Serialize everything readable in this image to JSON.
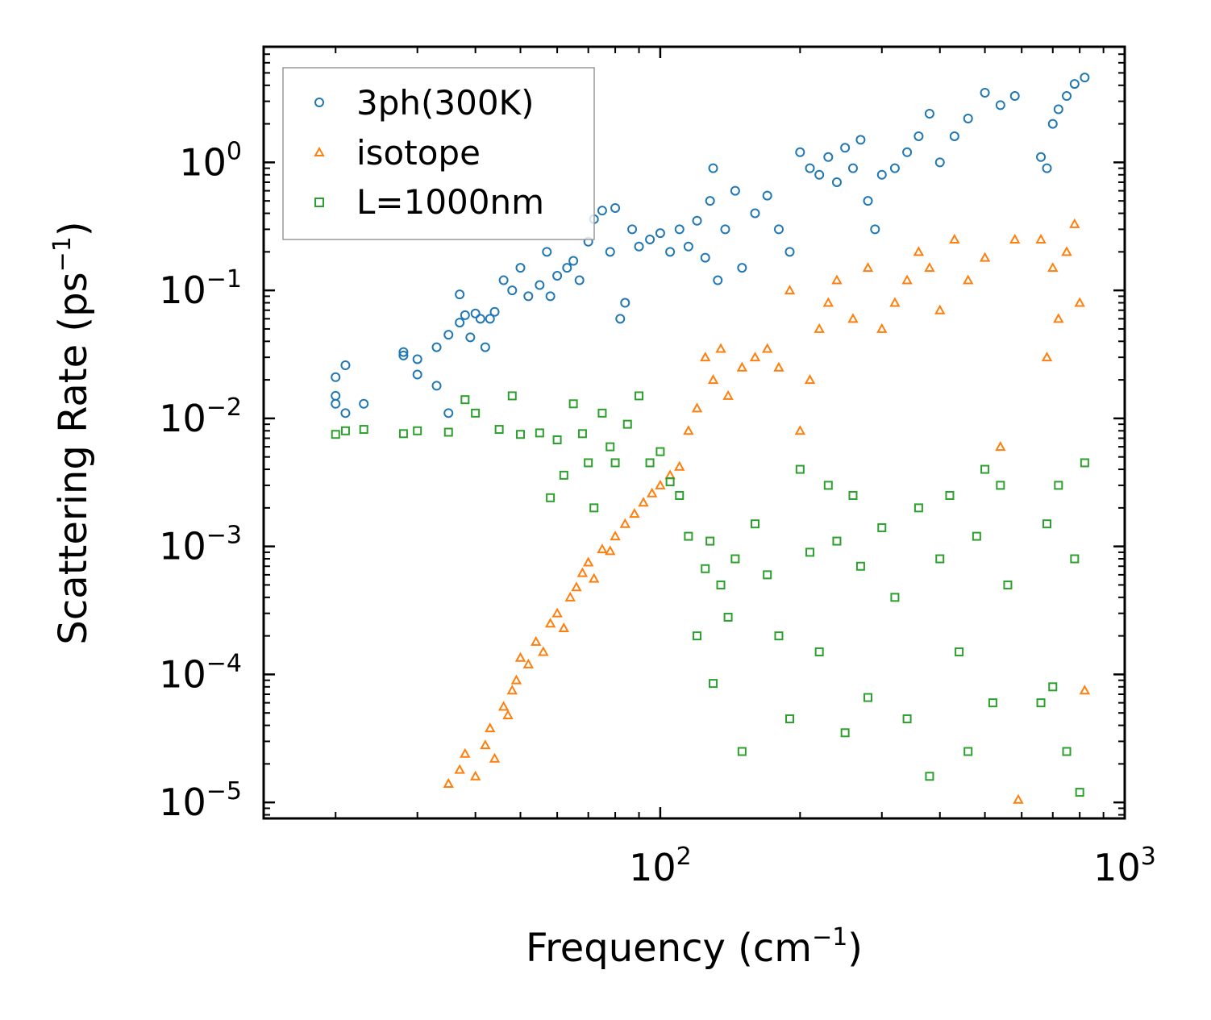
{
  "chart_data": {
    "type": "scatter",
    "title": "",
    "xlabel": "Frequency (cm",
    "xlabel_sup": "−1",
    "xlabel_suffix": ")",
    "ylabel": "Scattering Rate (ps",
    "ylabel_sup": "−1",
    "ylabel_suffix": ")",
    "xscale": "log",
    "yscale": "log",
    "xlim": [
      14,
      1000
    ],
    "ylim": [
      7.5e-06,
      8
    ],
    "x_ticks": [
      {
        "value": 100,
        "base": "10",
        "exp": "2"
      },
      {
        "value": 1000,
        "base": "10",
        "exp": "3"
      }
    ],
    "y_ticks": [
      {
        "value": 1e-05,
        "base": "10",
        "exp": "−5"
      },
      {
        "value": 0.0001,
        "base": "10",
        "exp": "−4"
      },
      {
        "value": 0.001,
        "base": "10",
        "exp": "−3"
      },
      {
        "value": 0.01,
        "base": "10",
        "exp": "−2"
      },
      {
        "value": 0.1,
        "base": "10",
        "exp": "−1"
      },
      {
        "value": 1,
        "base": "10",
        "exp": "0"
      }
    ],
    "legend_position": "top-left",
    "series": [
      {
        "name": "3ph(300K)",
        "marker": "circle",
        "color": "#1f77b4",
        "points": [
          [
            20,
            0.013
          ],
          [
            20,
            0.021
          ],
          [
            20,
            0.015
          ],
          [
            21,
            0.011
          ],
          [
            21,
            0.026
          ],
          [
            23,
            0.013
          ],
          [
            28,
            0.031
          ],
          [
            28,
            0.033
          ],
          [
            30,
            0.029
          ],
          [
            30,
            0.022
          ],
          [
            33,
            0.036
          ],
          [
            33,
            0.018
          ],
          [
            35,
            0.045
          ],
          [
            35,
            0.011
          ],
          [
            37,
            0.056
          ],
          [
            37,
            0.093
          ],
          [
            38,
            0.064
          ],
          [
            39,
            0.043
          ],
          [
            40,
            0.066
          ],
          [
            41,
            0.06
          ],
          [
            42,
            0.036
          ],
          [
            43,
            0.06
          ],
          [
            44,
            0.068
          ],
          [
            46,
            0.12
          ],
          [
            48,
            0.1
          ],
          [
            50,
            0.15
          ],
          [
            52,
            0.09
          ],
          [
            55,
            0.11
          ],
          [
            57,
            0.2
          ],
          [
            58,
            0.09
          ],
          [
            60,
            0.13
          ],
          [
            63,
            0.15
          ],
          [
            65,
            0.17
          ],
          [
            67,
            0.12
          ],
          [
            70,
            0.24
          ],
          [
            72,
            0.36
          ],
          [
            75,
            0.42
          ],
          [
            78,
            0.2
          ],
          [
            80,
            0.44
          ],
          [
            82,
            0.06
          ],
          [
            84,
            0.08
          ],
          [
            87,
            0.3
          ],
          [
            90,
            0.22
          ],
          [
            95,
            0.25
          ],
          [
            100,
            0.28
          ],
          [
            105,
            0.2
          ],
          [
            110,
            0.3
          ],
          [
            115,
            0.22
          ],
          [
            120,
            0.35
          ],
          [
            125,
            0.18
          ],
          [
            128,
            0.5
          ],
          [
            130,
            0.9
          ],
          [
            133,
            0.12
          ],
          [
            138,
            0.3
          ],
          [
            145,
            0.6
          ],
          [
            150,
            0.15
          ],
          [
            160,
            0.4
          ],
          [
            170,
            0.55
          ],
          [
            180,
            0.3
          ],
          [
            190,
            0.2
          ],
          [
            200,
            1.2
          ],
          [
            210,
            0.9
          ],
          [
            220,
            0.8
          ],
          [
            230,
            1.1
          ],
          [
            240,
            0.7
          ],
          [
            250,
            1.3
          ],
          [
            260,
            0.9
          ],
          [
            270,
            1.5
          ],
          [
            280,
            0.5
          ],
          [
            290,
            0.3
          ],
          [
            300,
            0.8
          ],
          [
            320,
            0.9
          ],
          [
            340,
            1.2
          ],
          [
            360,
            1.6
          ],
          [
            380,
            2.4
          ],
          [
            400,
            1.0
          ],
          [
            430,
            1.6
          ],
          [
            460,
            2.2
          ],
          [
            500,
            3.5
          ],
          [
            540,
            2.8
          ],
          [
            580,
            3.3
          ],
          [
            660,
            1.1
          ],
          [
            680,
            0.9
          ],
          [
            700,
            2.0
          ],
          [
            720,
            2.6
          ],
          [
            750,
            3.3
          ],
          [
            780,
            4.1
          ],
          [
            820,
            4.6
          ]
        ]
      },
      {
        "name": "isotope",
        "marker": "triangle",
        "color": "#ff7f0e",
        "points": [
          [
            35,
            1.4e-05
          ],
          [
            37,
            1.8e-05
          ],
          [
            38,
            2.4e-05
          ],
          [
            40,
            1.6e-05
          ],
          [
            42,
            2.8e-05
          ],
          [
            43,
            3.8e-05
          ],
          [
            44,
            2.2e-05
          ],
          [
            46,
            5.6e-05
          ],
          [
            47,
            4.8e-05
          ],
          [
            48,
            7.5e-05
          ],
          [
            49,
            9e-05
          ],
          [
            50,
            0.000135
          ],
          [
            52,
            0.00012
          ],
          [
            54,
            0.00018
          ],
          [
            56,
            0.00015
          ],
          [
            58,
            0.00025
          ],
          [
            60,
            0.0003
          ],
          [
            62,
            0.00023
          ],
          [
            64,
            0.0004
          ],
          [
            66,
            0.00048
          ],
          [
            68,
            0.00062
          ],
          [
            70,
            0.00075
          ],
          [
            72,
            0.00056
          ],
          [
            75,
            0.00095
          ],
          [
            78,
            0.00092
          ],
          [
            80,
            0.0012
          ],
          [
            84,
            0.0015
          ],
          [
            88,
            0.0018
          ],
          [
            92,
            0.0022
          ],
          [
            96,
            0.0026
          ],
          [
            100,
            0.003
          ],
          [
            105,
            0.0036
          ],
          [
            110,
            0.0042
          ],
          [
            115,
            0.008
          ],
          [
            120,
            0.012
          ],
          [
            125,
            0.03
          ],
          [
            130,
            0.02
          ],
          [
            135,
            0.035
          ],
          [
            140,
            0.015
          ],
          [
            150,
            0.025
          ],
          [
            160,
            0.03
          ],
          [
            170,
            0.035
          ],
          [
            180,
            0.025
          ],
          [
            190,
            0.1
          ],
          [
            200,
            0.008
          ],
          [
            210,
            0.02
          ],
          [
            220,
            0.05
          ],
          [
            230,
            0.08
          ],
          [
            240,
            0.12
          ],
          [
            260,
            0.06
          ],
          [
            280,
            0.15
          ],
          [
            300,
            0.05
          ],
          [
            320,
            0.08
          ],
          [
            340,
            0.12
          ],
          [
            360,
            0.2
          ],
          [
            380,
            0.15
          ],
          [
            400,
            0.07
          ],
          [
            430,
            0.25
          ],
          [
            460,
            0.12
          ],
          [
            500,
            0.18
          ],
          [
            540,
            0.006
          ],
          [
            580,
            0.25
          ],
          [
            590,
            1.05e-05
          ],
          [
            660,
            0.25
          ],
          [
            680,
            0.03
          ],
          [
            700,
            0.15
          ],
          [
            720,
            0.06
          ],
          [
            750,
            0.2
          ],
          [
            780,
            0.33
          ],
          [
            800,
            0.08
          ],
          [
            820,
            7.5e-05
          ]
        ]
      },
      {
        "name": "L=1000nm",
        "marker": "square",
        "color": "#2ca02c",
        "points": [
          [
            20,
            0.0075
          ],
          [
            21,
            0.008
          ],
          [
            23,
            0.0082
          ],
          [
            28,
            0.0076
          ],
          [
            30,
            0.008
          ],
          [
            35,
            0.0078
          ],
          [
            38,
            0.014
          ],
          [
            40,
            0.011
          ],
          [
            45,
            0.0082
          ],
          [
            48,
            0.015
          ],
          [
            50,
            0.0075
          ],
          [
            55,
            0.0077
          ],
          [
            58,
            0.0024
          ],
          [
            60,
            0.0068
          ],
          [
            62,
            0.0036
          ],
          [
            65,
            0.013
          ],
          [
            68,
            0.0076
          ],
          [
            70,
            0.0045
          ],
          [
            72,
            0.002
          ],
          [
            75,
            0.011
          ],
          [
            78,
            0.006
          ],
          [
            80,
            0.0045
          ],
          [
            85,
            0.009
          ],
          [
            90,
            0.015
          ],
          [
            95,
            0.0045
          ],
          [
            100,
            0.0055
          ],
          [
            105,
            0.0032
          ],
          [
            110,
            0.0025
          ],
          [
            115,
            0.0012
          ],
          [
            120,
            0.0002
          ],
          [
            125,
            0.00067
          ],
          [
            128,
            0.0011
          ],
          [
            130,
            8.5e-05
          ],
          [
            135,
            0.0005
          ],
          [
            140,
            0.00028
          ],
          [
            145,
            0.0008
          ],
          [
            150,
            2.5e-05
          ],
          [
            160,
            0.0015
          ],
          [
            170,
            0.0006
          ],
          [
            180,
            0.0002
          ],
          [
            190,
            4.5e-05
          ],
          [
            200,
            0.004
          ],
          [
            210,
            0.0009
          ],
          [
            220,
            0.00015
          ],
          [
            230,
            0.003
          ],
          [
            240,
            0.0011
          ],
          [
            250,
            3.5e-05
          ],
          [
            260,
            0.0025
          ],
          [
            270,
            0.0007
          ],
          [
            280,
            6.6e-05
          ],
          [
            300,
            0.0014
          ],
          [
            320,
            0.0004
          ],
          [
            340,
            4.5e-05
          ],
          [
            360,
            0.002
          ],
          [
            380,
            1.6e-05
          ],
          [
            400,
            0.0008
          ],
          [
            420,
            0.0025
          ],
          [
            440,
            0.00015
          ],
          [
            460,
            2.5e-05
          ],
          [
            480,
            0.0012
          ],
          [
            500,
            0.004
          ],
          [
            520,
            6e-05
          ],
          [
            540,
            0.003
          ],
          [
            560,
            0.0005
          ],
          [
            660,
            6e-05
          ],
          [
            680,
            0.0015
          ],
          [
            700,
            8e-05
          ],
          [
            720,
            0.003
          ],
          [
            750,
            2.5e-05
          ],
          [
            780,
            0.0008
          ],
          [
            800,
            1.2e-05
          ],
          [
            820,
            0.0045
          ]
        ]
      }
    ]
  }
}
